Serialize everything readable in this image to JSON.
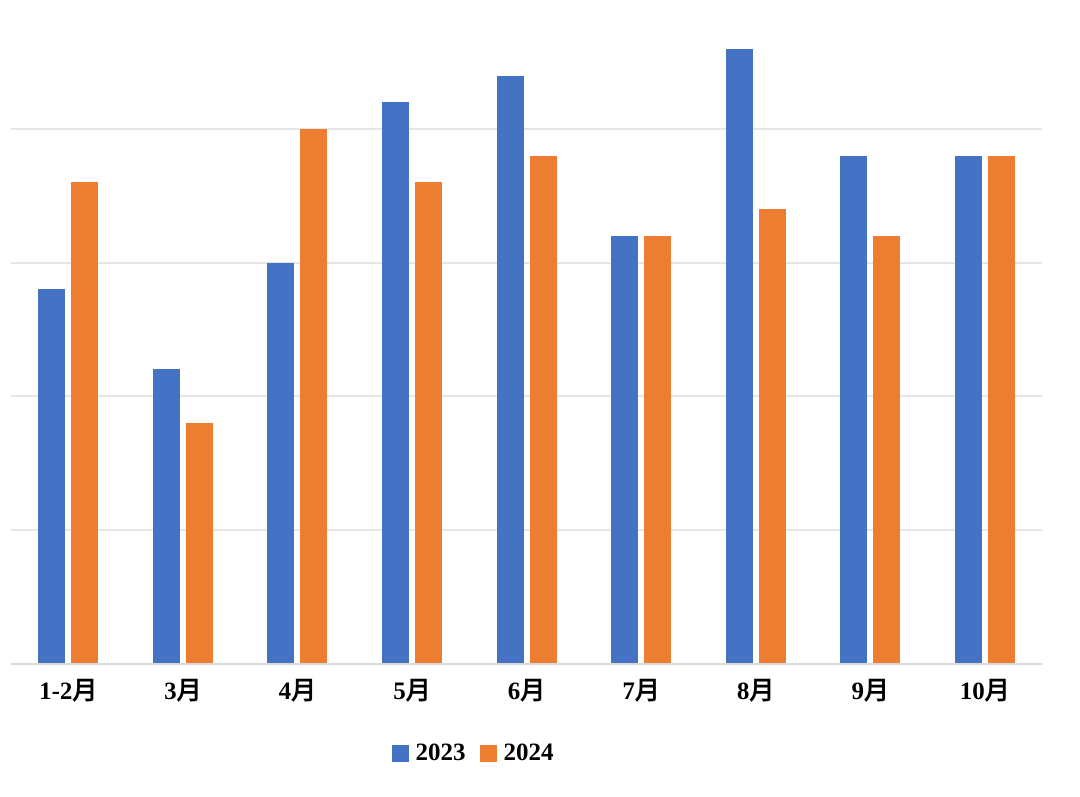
{
  "chart_data": {
    "type": "bar",
    "title": "",
    "xlabel": "",
    "ylabel": "",
    "categories": [
      "1-2月",
      "3月",
      "4月",
      "5月",
      "6月",
      "7月",
      "8月",
      "9月",
      "10月"
    ],
    "series": [
      {
        "name": "2023",
        "color": "#4472C4",
        "values": [
          2.8,
          2.2,
          3.0,
          4.2,
          4.4,
          3.2,
          4.6,
          3.8,
          3.8
        ]
      },
      {
        "name": "2024",
        "color": "#ED7D31",
        "values": [
          3.6,
          1.8,
          4.0,
          3.6,
          3.8,
          3.2,
          3.4,
          3.2,
          3.8
        ]
      }
    ],
    "value_units": "relative gridline units (no y-axis tick labels visible; gridline spacing = 1 unit, baseline = 0)",
    "ylim": [
      0,
      5
    ],
    "gridline_values": [
      1,
      2,
      3,
      4
    ],
    "grid": "horizontal gridlines on",
    "y_axis_labels_visible": false,
    "legend_position": "bottom"
  },
  "colors": {
    "series_2023": "#4472C4",
    "series_2024": "#ED7D31",
    "gridline": "#E6E6E6",
    "axis_line": "#D9D9D9",
    "label_text": "#000000",
    "background": "#FFFFFF"
  }
}
